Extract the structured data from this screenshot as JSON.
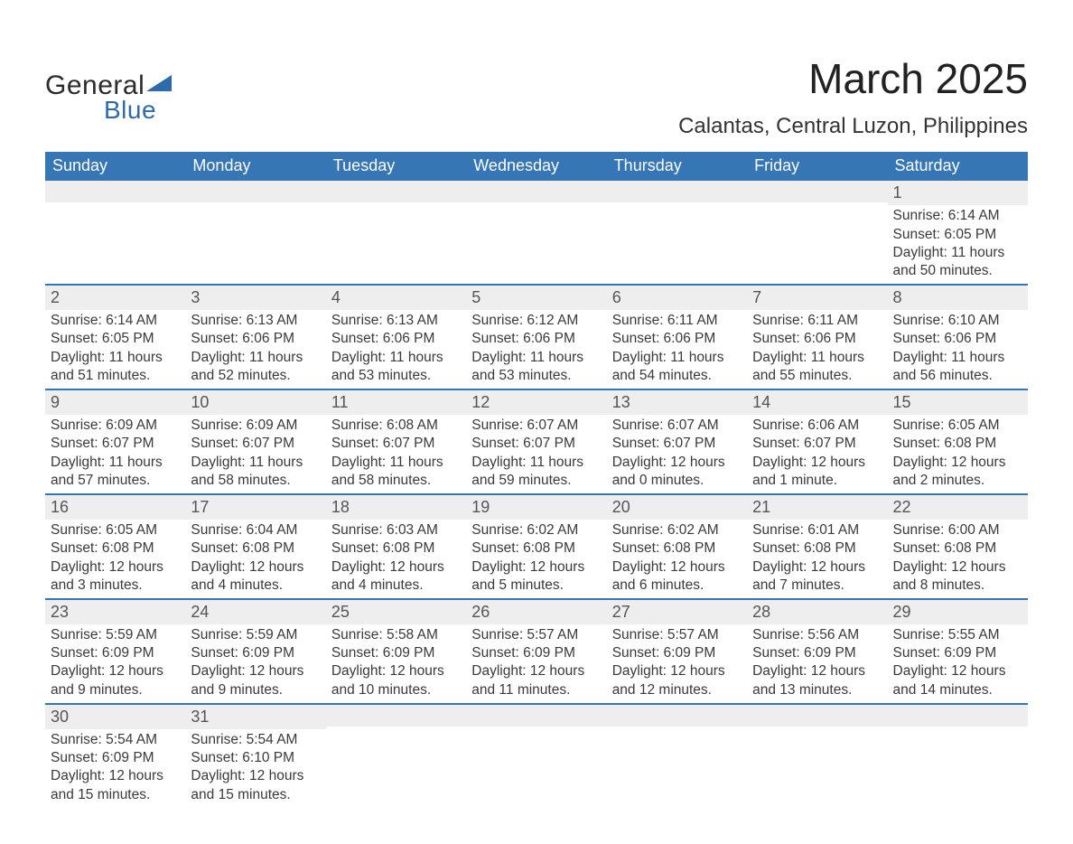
{
  "colors": {
    "header_bg": "#3776b5",
    "header_text": "#ffffff",
    "band_bg": "#eeeeee",
    "row_border": "#3776b5",
    "logo_blue": "#2f6aab",
    "body_text": "#3a3a3a",
    "title_text": "#222222"
  },
  "logo": {
    "line1": "General",
    "line2": "Blue"
  },
  "title": {
    "month": "March 2025",
    "location": "Calantas, Central Luzon, Philippines"
  },
  "weekdays": [
    "Sunday",
    "Monday",
    "Tuesday",
    "Wednesday",
    "Thursday",
    "Friday",
    "Saturday"
  ],
  "labels": {
    "sunrise": "Sunrise:",
    "sunset": "Sunset:",
    "daylight": "Daylight:"
  },
  "weeks": [
    [
      {
        "blank": true
      },
      {
        "blank": true
      },
      {
        "blank": true
      },
      {
        "blank": true
      },
      {
        "blank": true
      },
      {
        "blank": true
      },
      {
        "day": "1",
        "sunrise": "6:14 AM",
        "sunset": "6:05 PM",
        "daylight": "11 hours and 50 minutes."
      }
    ],
    [
      {
        "day": "2",
        "sunrise": "6:14 AM",
        "sunset": "6:05 PM",
        "daylight": "11 hours and 51 minutes."
      },
      {
        "day": "3",
        "sunrise": "6:13 AM",
        "sunset": "6:06 PM",
        "daylight": "11 hours and 52 minutes."
      },
      {
        "day": "4",
        "sunrise": "6:13 AM",
        "sunset": "6:06 PM",
        "daylight": "11 hours and 53 minutes."
      },
      {
        "day": "5",
        "sunrise": "6:12 AM",
        "sunset": "6:06 PM",
        "daylight": "11 hours and 53 minutes."
      },
      {
        "day": "6",
        "sunrise": "6:11 AM",
        "sunset": "6:06 PM",
        "daylight": "11 hours and 54 minutes."
      },
      {
        "day": "7",
        "sunrise": "6:11 AM",
        "sunset": "6:06 PM",
        "daylight": "11 hours and 55 minutes."
      },
      {
        "day": "8",
        "sunrise": "6:10 AM",
        "sunset": "6:06 PM",
        "daylight": "11 hours and 56 minutes."
      }
    ],
    [
      {
        "day": "9",
        "sunrise": "6:09 AM",
        "sunset": "6:07 PM",
        "daylight": "11 hours and 57 minutes."
      },
      {
        "day": "10",
        "sunrise": "6:09 AM",
        "sunset": "6:07 PM",
        "daylight": "11 hours and 58 minutes."
      },
      {
        "day": "11",
        "sunrise": "6:08 AM",
        "sunset": "6:07 PM",
        "daylight": "11 hours and 58 minutes."
      },
      {
        "day": "12",
        "sunrise": "6:07 AM",
        "sunset": "6:07 PM",
        "daylight": "11 hours and 59 minutes."
      },
      {
        "day": "13",
        "sunrise": "6:07 AM",
        "sunset": "6:07 PM",
        "daylight": "12 hours and 0 minutes."
      },
      {
        "day": "14",
        "sunrise": "6:06 AM",
        "sunset": "6:07 PM",
        "daylight": "12 hours and 1 minute."
      },
      {
        "day": "15",
        "sunrise": "6:05 AM",
        "sunset": "6:08 PM",
        "daylight": "12 hours and 2 minutes."
      }
    ],
    [
      {
        "day": "16",
        "sunrise": "6:05 AM",
        "sunset": "6:08 PM",
        "daylight": "12 hours and 3 minutes."
      },
      {
        "day": "17",
        "sunrise": "6:04 AM",
        "sunset": "6:08 PM",
        "daylight": "12 hours and 4 minutes."
      },
      {
        "day": "18",
        "sunrise": "6:03 AM",
        "sunset": "6:08 PM",
        "daylight": "12 hours and 4 minutes."
      },
      {
        "day": "19",
        "sunrise": "6:02 AM",
        "sunset": "6:08 PM",
        "daylight": "12 hours and 5 minutes."
      },
      {
        "day": "20",
        "sunrise": "6:02 AM",
        "sunset": "6:08 PM",
        "daylight": "12 hours and 6 minutes."
      },
      {
        "day": "21",
        "sunrise": "6:01 AM",
        "sunset": "6:08 PM",
        "daylight": "12 hours and 7 minutes."
      },
      {
        "day": "22",
        "sunrise": "6:00 AM",
        "sunset": "6:08 PM",
        "daylight": "12 hours and 8 minutes."
      }
    ],
    [
      {
        "day": "23",
        "sunrise": "5:59 AM",
        "sunset": "6:09 PM",
        "daylight": "12 hours and 9 minutes."
      },
      {
        "day": "24",
        "sunrise": "5:59 AM",
        "sunset": "6:09 PM",
        "daylight": "12 hours and 9 minutes."
      },
      {
        "day": "25",
        "sunrise": "5:58 AM",
        "sunset": "6:09 PM",
        "daylight": "12 hours and 10 minutes."
      },
      {
        "day": "26",
        "sunrise": "5:57 AM",
        "sunset": "6:09 PM",
        "daylight": "12 hours and 11 minutes."
      },
      {
        "day": "27",
        "sunrise": "5:57 AM",
        "sunset": "6:09 PM",
        "daylight": "12 hours and 12 minutes."
      },
      {
        "day": "28",
        "sunrise": "5:56 AM",
        "sunset": "6:09 PM",
        "daylight": "12 hours and 13 minutes."
      },
      {
        "day": "29",
        "sunrise": "5:55 AM",
        "sunset": "6:09 PM",
        "daylight": "12 hours and 14 minutes."
      }
    ],
    [
      {
        "day": "30",
        "sunrise": "5:54 AM",
        "sunset": "6:09 PM",
        "daylight": "12 hours and 15 minutes."
      },
      {
        "day": "31",
        "sunrise": "5:54 AM",
        "sunset": "6:10 PM",
        "daylight": "12 hours and 15 minutes."
      },
      {
        "blank": true
      },
      {
        "blank": true
      },
      {
        "blank": true
      },
      {
        "blank": true
      },
      {
        "blank": true
      }
    ]
  ]
}
